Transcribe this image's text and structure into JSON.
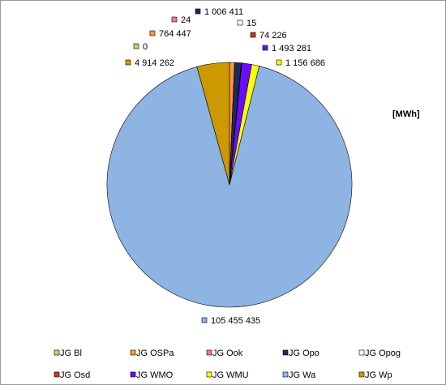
{
  "chart_data": {
    "type": "pie",
    "unit": "[MWh]",
    "categories": [
      "JG Bl",
      "JG OSPa",
      "JG Ook",
      "JG Opo",
      "JG Opog",
      "JG Osd",
      "JG WMO",
      "JG WMU",
      "JG Wa",
      "JG Wp"
    ],
    "values": [
      0,
      764447,
      24,
      1006411,
      15,
      74226,
      1493281,
      1156686,
      105455435,
      4914262
    ],
    "value_labels": [
      "0",
      "764 447",
      "24",
      "1 006 411",
      "15",
      "74 226",
      "1 493 281",
      "1 156 686",
      "105 455 435",
      "4 914 262"
    ],
    "colors": [
      "#b5d96a",
      "#ff9933",
      "#ff6f9a",
      "#1f2a5c",
      "#ffffe0",
      "#c0392b",
      "#6a0dff",
      "#ffff00",
      "#8eb4e3",
      "#cc9900"
    ]
  }
}
